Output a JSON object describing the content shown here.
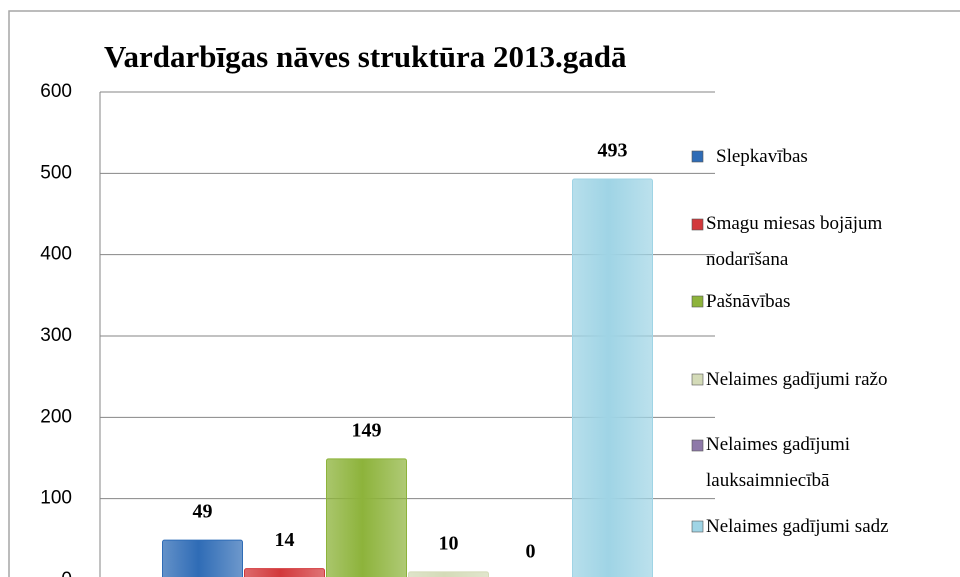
{
  "chart_data": {
    "type": "bar",
    "title": "Vardarbīgas nāves struktūra 2013.gadā",
    "series": [
      {
        "name": "Slepkavības",
        "color": "#2f6cb6",
        "values": [
          49
        ]
      },
      {
        "name": "Smagu miesas bojājum\nnodarīšana",
        "color": "#d2383b",
        "values": [
          14
        ]
      },
      {
        "name": "Pašnāvības",
        "color": "#8db33b",
        "values": [
          149
        ]
      },
      {
        "name": "Nelaimes gadījumi ražo",
        "color": "#d4dbb8",
        "values": [
          10
        ]
      },
      {
        "name": "Nelaimes gadījumi\nlauksaimniecībā",
        "color": "#8e79a9",
        "values": [
          0
        ]
      },
      {
        "name": "Nelaimes gadījumi sadz",
        "color": "#9fd4e5",
        "values": [
          493
        ]
      }
    ],
    "ylim": [
      0,
      600
    ],
    "yticks": [
      0,
      100,
      200,
      300,
      400,
      500,
      600
    ],
    "grid": true,
    "legend": "right"
  }
}
